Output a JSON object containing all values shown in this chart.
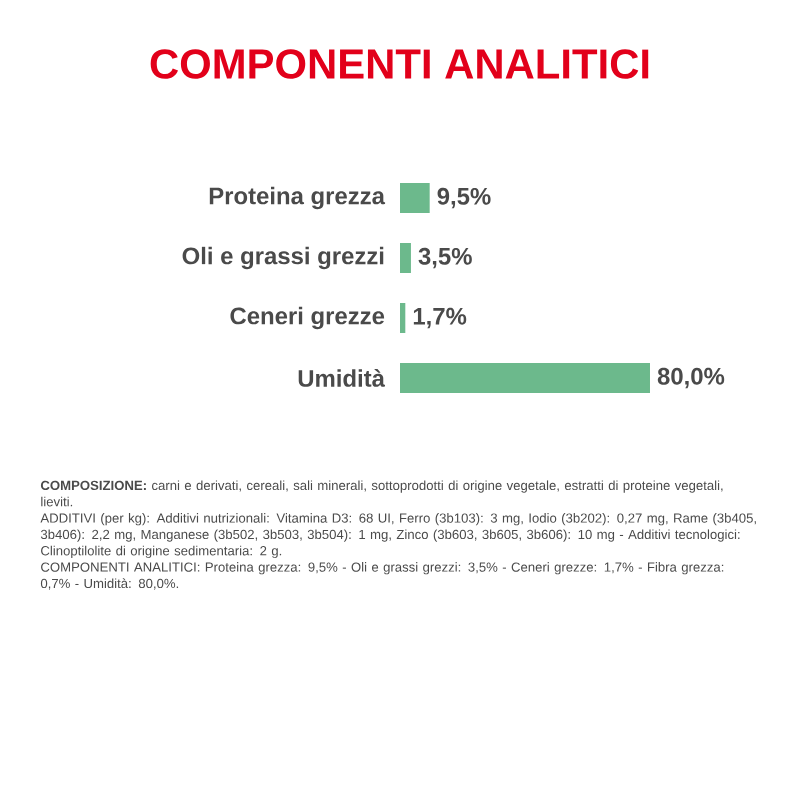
{
  "chart_data": {
    "type": "bar",
    "orientation": "horizontal",
    "title": "COMPONENTI ANALITICI",
    "categories": [
      "Proteina grezza",
      "Oli e grassi grezzi",
      "Ceneri grezze",
      "Umidità"
    ],
    "values": [
      9.5,
      3.5,
      1.7,
      80.0
    ],
    "value_labels": [
      "9,5%",
      "3,5%",
      "1,7%",
      "80,0%"
    ],
    "color": "#6cb98c",
    "annotations": [
      "**COMPOSIZIONE:** carni e derivati, cereali, sali minerali, sottoprodotti di origine vegetale, estratti di proteine vegetali, lieviti.",
      "ADDITIVI (per kg): Additivi nutrizionali: Vitamina D3: 68 UI, Ferro (3b103): 3 mg, Iodio (3b202): 0,27 mg, Rame (3b405, 3b406): 2,2 mg, Manganese (3b502, 3b503, 3b504): 1 mg, Zinco (3b603, 3b605, 3b606): 10 mg - Additivi tecnologici: Clinoptilolite di origine sedimentaria: 2 g.",
      "COMPONENTI ANALITICI: Proteina grezza: 9,5% - Oli e grassi grezzi: 3,5% - Ceneri grezze: 1,7% - Fibra grezza: 0,7% - Umidità: 80,0%."
    ]
  }
}
